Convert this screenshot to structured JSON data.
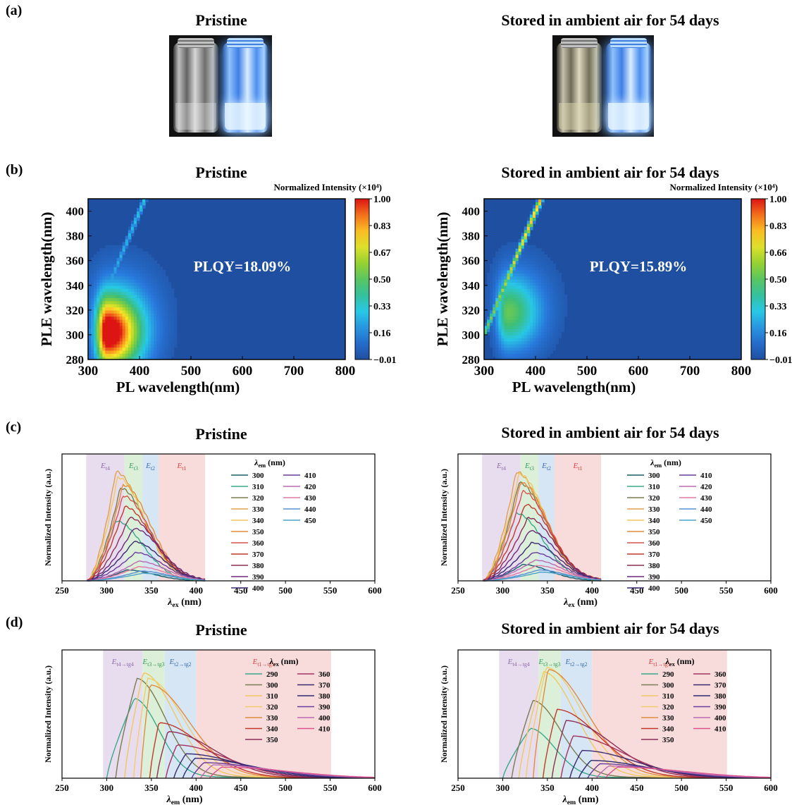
{
  "labels": {
    "a": "(a)",
    "b": "(b)",
    "c": "(c)",
    "d": "(d)"
  },
  "titles": {
    "pristine": "Pristine",
    "stored": "Stored in ambient air for 54 days"
  },
  "chart_data": [
    {
      "panel": "b-left",
      "type": "heatmap",
      "title": "Pristine",
      "xlabel": "PL wavelength(nm)",
      "ylabel": "PLE wavelength(nm)",
      "xlim": [
        300,
        800
      ],
      "ylim": [
        280,
        410
      ],
      "xticks": [
        300,
        400,
        500,
        600,
        700,
        800
      ],
      "yticks": [
        280,
        300,
        320,
        340,
        360,
        380,
        400
      ],
      "colorbar_title": "Normalized Intensity (×10⁴)",
      "colorbar_ticks": [
        "1.00",
        "0.83",
        "0.67",
        "0.50",
        "0.33",
        "0.16",
        "−0.01"
      ],
      "annotation": "PLQY=18.09%",
      "peak": {
        "x": 337,
        "y": 302,
        "value": 1.0
      },
      "scatter_line_strength": 0.3
    },
    {
      "panel": "b-right",
      "type": "heatmap",
      "title": "Stored in ambient air for 54 days",
      "xlabel": "PL wavelength(nm)",
      "ylabel": "PLE wavelength(nm)",
      "xlim": [
        300,
        800
      ],
      "ylim": [
        280,
        410
      ],
      "xticks": [
        300,
        400,
        500,
        600,
        700,
        800
      ],
      "yticks": [
        280,
        300,
        320,
        340,
        360,
        380,
        400
      ],
      "colorbar_title": "Normalized Intensity (×10⁴)",
      "colorbar_ticks": [
        "1.00",
        "0.83",
        "0.66",
        "0.50",
        "0.33",
        "0.16",
        "−0.01"
      ],
      "annotation": "PLQY=15.89%",
      "peak": {
        "x": 345,
        "y": 318,
        "value": 0.45
      },
      "scatter_line_strength": 0.85
    },
    {
      "panel": "c-left",
      "type": "line",
      "title": "Pristine",
      "xlabel": "λex (nm)",
      "ylabel": "Normalized Intensity (a.u.)",
      "xlim": [
        250,
        600
      ],
      "xticks": [
        250,
        300,
        350,
        400,
        450,
        500,
        550,
        600
      ],
      "legend_title": "λem (nm)",
      "bands": [
        {
          "label": "Et4",
          "from": 277,
          "to": 320,
          "color": "#e8dcef"
        },
        {
          "label": "Et3",
          "from": 320,
          "to": 340,
          "color": "#dcefd9"
        },
        {
          "label": "Et2",
          "from": 340,
          "to": 358,
          "color": "#d6e6f4"
        },
        {
          "label": "Et1",
          "from": 358,
          "to": 410,
          "color": "#f8dcdc"
        }
      ],
      "series": [
        {
          "name": "300",
          "peak": 322,
          "height": 0.1
        },
        {
          "name": "310",
          "peak": 310,
          "height": 0.55
        },
        {
          "name": "320",
          "peak": 315,
          "height": 0.85
        },
        {
          "name": "330",
          "peak": 310,
          "height": 1.0
        },
        {
          "name": "340",
          "peak": 312,
          "height": 0.95
        },
        {
          "name": "350",
          "peak": 318,
          "height": 0.88
        },
        {
          "name": "360",
          "peak": 318,
          "height": 0.78
        },
        {
          "name": "370",
          "peak": 320,
          "height": 0.68
        },
        {
          "name": "380",
          "peak": 325,
          "height": 0.58
        },
        {
          "name": "390",
          "peak": 330,
          "height": 0.48
        },
        {
          "name": "400",
          "peak": 330,
          "height": 0.36
        },
        {
          "name": "410",
          "peak": 332,
          "height": 0.26
        },
        {
          "name": "420",
          "peak": 335,
          "height": 0.18
        },
        {
          "name": "430",
          "peak": 335,
          "height": 0.13
        },
        {
          "name": "440",
          "peak": 338,
          "height": 0.09
        },
        {
          "name": "450",
          "peak": 340,
          "height": 0.07
        }
      ]
    },
    {
      "panel": "c-right",
      "type": "line",
      "title": "Stored in ambient air for 54 days",
      "xlabel": "λex (nm)",
      "ylabel": "Normalized Intensity (a.u.)",
      "xlim": [
        250,
        600
      ],
      "xticks": [
        250,
        300,
        350,
        400,
        450,
        500,
        550,
        600
      ],
      "legend_title": "λem (nm)",
      "bands": [
        {
          "label": "Et4",
          "from": 277,
          "to": 320,
          "color": "#e8dcef"
        },
        {
          "label": "Et3",
          "from": 320,
          "to": 340,
          "color": "#dcefd9"
        },
        {
          "label": "Et2",
          "from": 340,
          "to": 358,
          "color": "#d6e6f4"
        },
        {
          "label": "Et1",
          "from": 358,
          "to": 410,
          "color": "#f8dcdc"
        }
      ],
      "series": [
        {
          "name": "300",
          "peak": 322,
          "height": 0.15
        },
        {
          "name": "310",
          "peak": 315,
          "height": 0.62
        },
        {
          "name": "320",
          "peak": 318,
          "height": 0.9
        },
        {
          "name": "330",
          "peak": 315,
          "height": 1.0
        },
        {
          "name": "340",
          "peak": 318,
          "height": 0.98
        },
        {
          "name": "350",
          "peak": 320,
          "height": 0.9
        },
        {
          "name": "360",
          "peak": 322,
          "height": 0.82
        },
        {
          "name": "370",
          "peak": 325,
          "height": 0.7
        },
        {
          "name": "380",
          "peak": 328,
          "height": 0.58
        },
        {
          "name": "390",
          "peak": 330,
          "height": 0.46
        },
        {
          "name": "400",
          "peak": 332,
          "height": 0.35
        },
        {
          "name": "410",
          "peak": 334,
          "height": 0.26
        },
        {
          "name": "420",
          "peak": 336,
          "height": 0.19
        },
        {
          "name": "430",
          "peak": 338,
          "height": 0.14
        },
        {
          "name": "440",
          "peak": 340,
          "height": 0.1
        },
        {
          "name": "450",
          "peak": 342,
          "height": 0.08
        }
      ]
    },
    {
      "panel": "d-left",
      "type": "line",
      "title": "Pristine",
      "xlabel": "λem (nm)",
      "ylabel": "Normalized Intensity (a.u.)",
      "xlim": [
        250,
        600
      ],
      "xticks": [
        250,
        300,
        350,
        400,
        450,
        500,
        550,
        600
      ],
      "legend_title": "λex (nm)",
      "bands": [
        {
          "label": "Et4→tg4",
          "from": 296,
          "to": 340,
          "color": "#e8dcef"
        },
        {
          "label": "Et3→tg3",
          "from": 340,
          "to": 365,
          "color": "#dcefd9"
        },
        {
          "label": "Et2→tg2",
          "from": 365,
          "to": 400,
          "color": "#d6e6f4"
        },
        {
          "label": "Et1→tg1",
          "from": 400,
          "to": 551,
          "color": "#f8dcdc"
        }
      ],
      "series": [
        {
          "name": "290",
          "start": 300,
          "peak": 330,
          "height": 0.72
        },
        {
          "name": "300",
          "start": 310,
          "peak": 333,
          "height": 0.9
        },
        {
          "name": "310",
          "start": 320,
          "peak": 340,
          "height": 0.95
        },
        {
          "name": "320",
          "start": 330,
          "peak": 345,
          "height": 0.9
        },
        {
          "name": "330",
          "start": 338,
          "peak": 348,
          "height": 0.84
        },
        {
          "name": "340",
          "start": 348,
          "peak": 358,
          "height": 0.5
        },
        {
          "name": "350",
          "start": 356,
          "peak": 368,
          "height": 0.42
        },
        {
          "name": "360",
          "start": 366,
          "peak": 378,
          "height": 0.3
        },
        {
          "name": "370",
          "start": 375,
          "peak": 388,
          "height": 0.22
        },
        {
          "name": "380",
          "start": 385,
          "peak": 398,
          "height": 0.18
        },
        {
          "name": "390",
          "start": 395,
          "peak": 408,
          "height": 0.14
        },
        {
          "name": "400",
          "start": 405,
          "peak": 418,
          "height": 0.12
        },
        {
          "name": "410",
          "start": 415,
          "peak": 428,
          "height": 0.1
        }
      ]
    },
    {
      "panel": "d-right",
      "type": "line",
      "title": "Stored in ambient air for 54 days",
      "xlabel": "λem (nm)",
      "ylabel": "Normalized Intensity (a.u.)",
      "xlim": [
        250,
        600
      ],
      "xticks": [
        250,
        300,
        350,
        400,
        450,
        500,
        550,
        600
      ],
      "legend_title": "λex (nm)",
      "bands": [
        {
          "label": "Et4→tg4",
          "from": 296,
          "to": 340,
          "color": "#e8dcef"
        },
        {
          "label": "Et3→tg3",
          "from": 340,
          "to": 365,
          "color": "#dcefd9"
        },
        {
          "label": "Et2→tg2",
          "from": 365,
          "to": 400,
          "color": "#d6e6f4"
        },
        {
          "label": "Et1→tg1",
          "from": 400,
          "to": 551,
          "color": "#f8dcdc"
        }
      ],
      "series": [
        {
          "name": "290",
          "start": 300,
          "peak": 330,
          "height": 0.45
        },
        {
          "name": "300",
          "start": 310,
          "peak": 333,
          "height": 0.7
        },
        {
          "name": "310",
          "start": 318,
          "peak": 345,
          "height": 0.96
        },
        {
          "name": "320",
          "start": 326,
          "peak": 348,
          "height": 1.0
        },
        {
          "name": "330",
          "start": 334,
          "peak": 350,
          "height": 0.98
        },
        {
          "name": "340",
          "start": 345,
          "peak": 360,
          "height": 0.62
        },
        {
          "name": "350",
          "start": 355,
          "peak": 370,
          "height": 0.52
        },
        {
          "name": "360",
          "start": 365,
          "peak": 378,
          "height": 0.38
        },
        {
          "name": "370",
          "start": 375,
          "peak": 388,
          "height": 0.25
        },
        {
          "name": "380",
          "start": 385,
          "peak": 398,
          "height": 0.16
        },
        {
          "name": "390",
          "start": 395,
          "peak": 408,
          "height": 0.13
        },
        {
          "name": "400",
          "start": 405,
          "peak": 418,
          "height": 0.11
        },
        {
          "name": "410",
          "start": 415,
          "peak": 428,
          "height": 0.1
        }
      ]
    }
  ],
  "colors": {
    "heatmap_background": "#1f4fa0",
    "palette_c": [
      "#1b5e6b",
      "#3aa88a",
      "#7b7b52",
      "#e0a050",
      "#f0c860",
      "#e08d3c",
      "#d9534f",
      "#c0392b",
      "#8e2d56",
      "#6b2a7a",
      "#3b2a6e",
      "#6a3d9a",
      "#b86ab0",
      "#e07aa0",
      "#5a8fd0",
      "#49a3c8"
    ],
    "palette_d": [
      "#3aa88a",
      "#7b7b52",
      "#f0c860",
      "#f2cc70",
      "#e08d3c",
      "#c0392b",
      "#8e2d56",
      "#a3335e",
      "#3b2a6e",
      "#2e2a70",
      "#6a3d9a",
      "#b86ab0",
      "#d9538f"
    ]
  }
}
